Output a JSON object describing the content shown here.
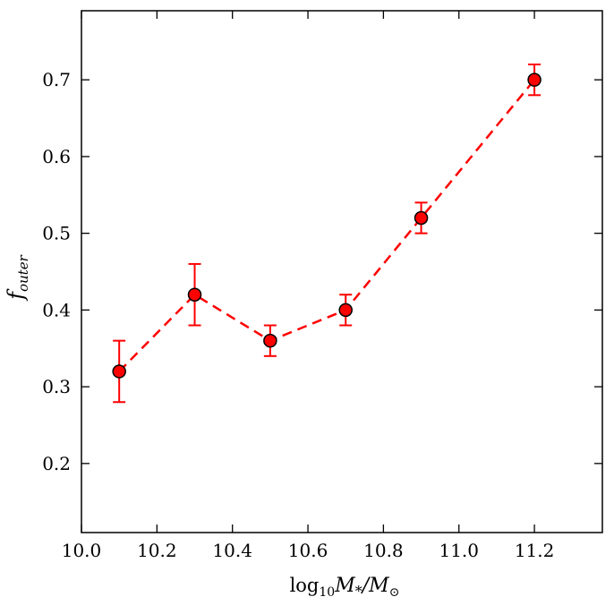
{
  "chart_data": {
    "type": "scatter",
    "xlabel": {
      "prefix": "log",
      "sub": "10",
      "main": "M",
      "sub2": "*",
      "mid": "/M",
      "sub3": "⊙"
    },
    "ylabel": {
      "main": "f",
      "sub": "outer"
    },
    "xlim": [
      10.0,
      11.38
    ],
    "ylim": [
      0.11,
      0.79
    ],
    "xticks": [
      "10.0",
      "10.2",
      "10.4",
      "10.6",
      "10.8",
      "11.0",
      "11.2"
    ],
    "yticks": [
      "0.2",
      "0.3",
      "0.4",
      "0.5",
      "0.6",
      "0.7"
    ],
    "grid": false,
    "marker_color": "#ff0000",
    "line_color": "#ff0000",
    "line_style": "dashed",
    "series": [
      {
        "x": [
          10.1,
          10.3,
          10.5,
          10.7,
          10.9,
          11.2
        ],
        "y": [
          0.32,
          0.42,
          0.36,
          0.4,
          0.52,
          0.7
        ],
        "yerr": [
          0.04,
          0.04,
          0.02,
          0.02,
          0.02,
          0.02
        ]
      }
    ]
  }
}
